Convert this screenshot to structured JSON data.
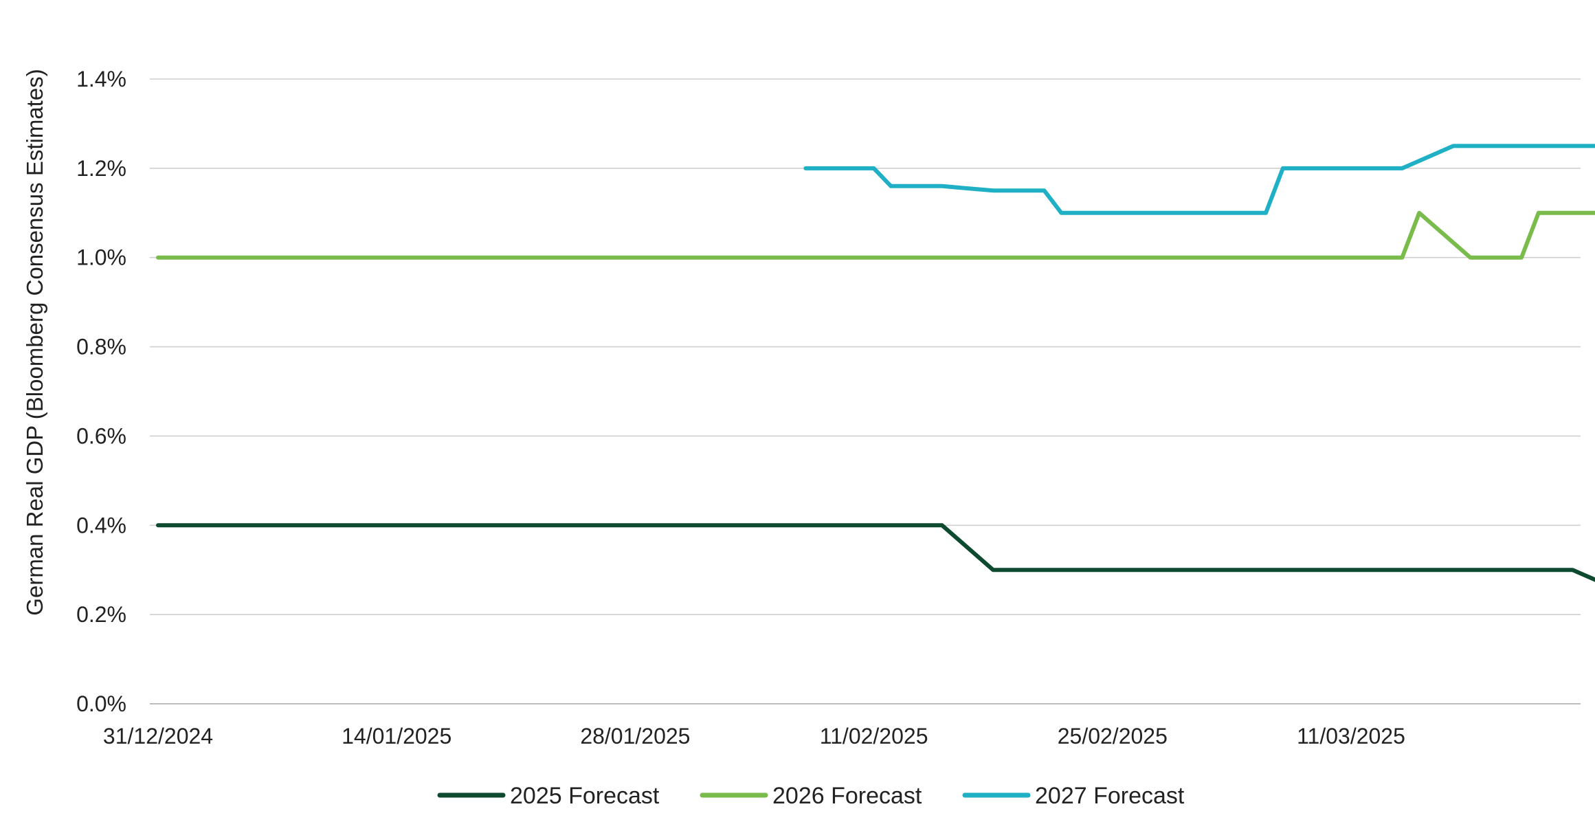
{
  "chart_data": {
    "type": "line",
    "title": "",
    "xlabel": "",
    "ylabel": "German Real GDP (Bloomberg Consensus Estimates)",
    "x_ticks": [
      "31/12/2024",
      "14/01/2025",
      "28/01/2025",
      "11/02/2025",
      "25/02/2025",
      "11/03/2025"
    ],
    "x_range": [
      "2024-12-31",
      "2025-03-26"
    ],
    "y_ticks": [
      "0.0%",
      "0.2%",
      "0.4%",
      "0.6%",
      "0.8%",
      "1.0%",
      "1.2%",
      "1.4%"
    ],
    "ylim": [
      0,
      1.4
    ],
    "grid": "horizontal",
    "legend_position": "bottom-center",
    "series": [
      {
        "name": "2025 Forecast",
        "color": "#0d4a30",
        "points": [
          [
            "2024-12-31",
            0.4
          ],
          [
            "2025-02-15",
            0.4
          ],
          [
            "2025-02-18",
            0.3
          ],
          [
            "2025-03-24",
            0.3
          ],
          [
            "2025-03-27",
            0.25
          ]
        ]
      },
      {
        "name": "2026 Forecast",
        "color": "#79bc4b",
        "points": [
          [
            "2024-12-31",
            1.0
          ],
          [
            "2025-03-14",
            1.0
          ],
          [
            "2025-03-15",
            1.1
          ],
          [
            "2025-03-18",
            1.0
          ],
          [
            "2025-03-21",
            1.0
          ],
          [
            "2025-03-22",
            1.1
          ],
          [
            "2025-03-27",
            1.1
          ]
        ]
      },
      {
        "name": "2027 Forecast",
        "color": "#1fb0c6",
        "points": [
          [
            "2025-02-07",
            1.2
          ],
          [
            "2025-02-11",
            1.2
          ],
          [
            "2025-02-12",
            1.16
          ],
          [
            "2025-02-15",
            1.16
          ],
          [
            "2025-02-18",
            1.15
          ],
          [
            "2025-02-21",
            1.15
          ],
          [
            "2025-02-22",
            1.1
          ],
          [
            "2025-03-06",
            1.1
          ],
          [
            "2025-03-07",
            1.2
          ],
          [
            "2025-03-14",
            1.2
          ],
          [
            "2025-03-17",
            1.25
          ],
          [
            "2025-03-27",
            1.25
          ]
        ]
      }
    ]
  }
}
